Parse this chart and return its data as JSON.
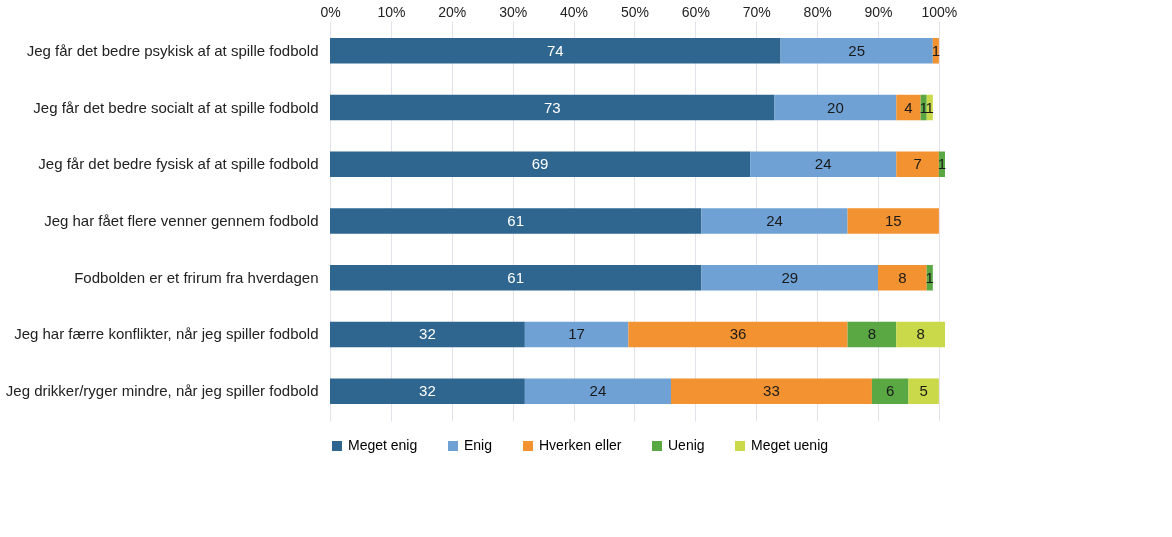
{
  "chart_data": {
    "type": "bar",
    "orientation": "horizontal",
    "stacked": true,
    "data_labels": true,
    "grid": "x",
    "legend": "bottom",
    "categories": [
      "Jeg får det bedre psykisk af at spille fodbold",
      "Jeg får det bedre socialt af at spille fodbold",
      "Jeg får det bedre fysisk af at spille fodbold",
      "Jeg har fået flere venner gennem fodbold",
      "Fodbolden er et frirum fra hverdagen",
      "Jeg har færre konflikter, når jeg spiller fodbold",
      "Jeg drikker/ryger mindre, når jeg spiller fodbold"
    ],
    "series": [
      {
        "name": "Meget enig",
        "color": "#2e6690",
        "values": [
          74,
          73,
          69,
          61,
          61,
          32,
          32
        ]
      },
      {
        "name": "Enig",
        "color": "#6fa1d4",
        "values": [
          25,
          20,
          24,
          24,
          29,
          17,
          24
        ]
      },
      {
        "name": "Hverken eller",
        "color": "#f39230",
        "values": [
          1,
          4,
          7,
          15,
          8,
          36,
          33
        ]
      },
      {
        "name": "Uenig",
        "color": "#5aa844",
        "values": [
          null,
          1,
          1,
          null,
          1,
          8,
          6
        ]
      },
      {
        "name": "Meget uenig",
        "color": "#c9d94a",
        "values": [
          null,
          1,
          null,
          null,
          null,
          8,
          5
        ]
      }
    ],
    "xlim": [
      0,
      101
    ],
    "xticks": [
      {
        "value": 0,
        "label": "0%"
      },
      {
        "value": 10,
        "label": "10%"
      },
      {
        "value": 20,
        "label": "20%"
      },
      {
        "value": 30,
        "label": "30%"
      },
      {
        "value": 40,
        "label": "40%"
      },
      {
        "value": 50,
        "label": "50%"
      },
      {
        "value": 60,
        "label": "60%"
      },
      {
        "value": 70,
        "label": "70%"
      },
      {
        "value": 80,
        "label": "80%"
      },
      {
        "value": 90,
        "label": "90%"
      },
      {
        "value": 100,
        "label": "100%"
      }
    ]
  }
}
